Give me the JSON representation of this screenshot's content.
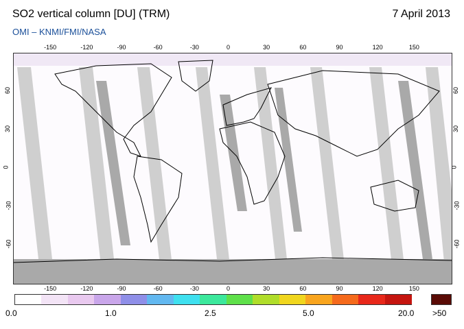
{
  "header": {
    "title": "SO2 vertical column [DU] (TRM)",
    "date": "7 April 2013",
    "credit": "OMI  –  KNMI/FMI/NASA"
  },
  "map": {
    "lon_ticks_top": [
      "-150",
      "-120",
      "-90",
      "-60",
      "-30",
      "0",
      "30",
      "60",
      "90",
      "120",
      "150"
    ],
    "lon_ticks_bottom": [
      "-150",
      "-120",
      "-90",
      "-60",
      "-30",
      "0",
      "30",
      "60",
      "90",
      "120",
      "150"
    ],
    "lat_ticks_left": [
      "60",
      "30",
      "0",
      "-30",
      "-60"
    ],
    "lat_ticks_right": [
      "60",
      "30",
      "0",
      "-30",
      "-60"
    ],
    "lon_range": [
      -180,
      180
    ],
    "lat_range": [
      -90,
      90
    ]
  },
  "colorbar": {
    "labels": [
      "0.0",
      "1.0",
      "2.5",
      "5.0",
      "20.0"
    ],
    "over_label": ">50",
    "colors": [
      "#ffffff",
      "#f3e4f6",
      "#e9c9ef",
      "#c9a6ea",
      "#8f8fe8",
      "#62b8f0",
      "#3fe0ef",
      "#3ce89c",
      "#5fe04a",
      "#b0dd2a",
      "#f0d61e",
      "#f9a51e",
      "#f56a1c",
      "#e8281a",
      "#c5150f"
    ],
    "over_color": "#5a0b06"
  }
}
